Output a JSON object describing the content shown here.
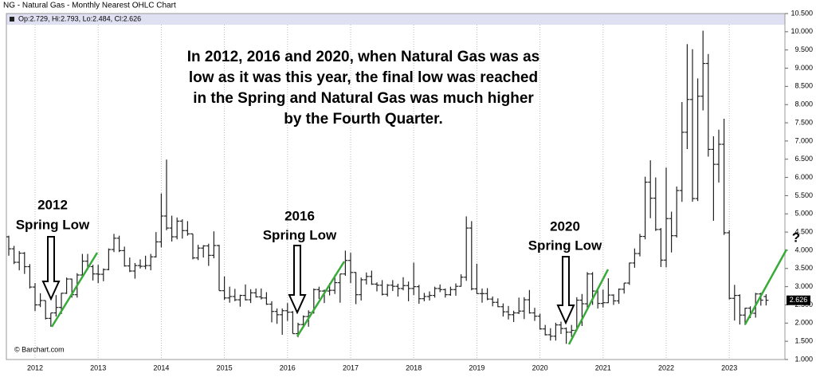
{
  "chart_data": {
    "type": "ohlc",
    "title": "NG - Natural Gas - Monthly Nearest OHLC Chart",
    "legend_labels": [
      "Op:",
      ", Hi:",
      ", Lo:",
      ", Cl:"
    ],
    "color": "#222222",
    "categories": [
      null,
      null,
      null,
      null,
      null,
      "2012",
      null,
      null,
      null,
      null,
      null,
      null,
      null,
      null,
      null,
      null,
      null,
      "2013",
      null,
      null,
      null,
      null,
      null,
      null,
      null,
      null,
      null,
      null,
      null,
      "2014",
      null,
      null,
      null,
      null,
      null,
      null,
      null,
      null,
      null,
      null,
      null,
      "2015",
      null,
      null,
      null,
      null,
      null,
      null,
      null,
      null,
      null,
      null,
      null,
      "2016",
      null,
      null,
      null,
      null,
      null,
      null,
      null,
      null,
      null,
      null,
      null,
      "2017",
      null,
      null,
      null,
      null,
      null,
      null,
      null,
      null,
      null,
      null,
      null,
      "2018",
      null,
      null,
      null,
      null,
      null,
      null,
      null,
      null,
      null,
      null,
      null,
      "2019",
      null,
      null,
      null,
      null,
      null,
      null,
      null,
      null,
      null,
      null,
      null,
      "2020",
      null,
      null,
      null,
      null,
      null,
      null,
      null,
      null,
      null,
      null,
      null,
      "2021",
      null,
      null,
      null,
      null,
      null,
      null,
      null,
      null,
      null,
      null,
      null,
      "2022",
      null,
      null,
      null,
      null,
      null,
      null,
      null,
      null,
      null,
      null,
      null,
      "2023",
      null,
      null,
      null,
      null,
      null,
      null,
      null
    ],
    "open": [
      4.37,
      4.04,
      3.67,
      3.92,
      3.55,
      2.99,
      2.5,
      2.62,
      2.13,
      2.28,
      2.43,
      2.82,
      3.21,
      2.78,
      3.32,
      3.7,
      3.55,
      3.35,
      3.34,
      3.47,
      4.02,
      4.33,
      3.99,
      3.57,
      3.43,
      3.58,
      3.56,
      3.58,
      3.82,
      4.23,
      4.94,
      4.61,
      4.37,
      4.8,
      4.54,
      4.45,
      3.79,
      4.06,
      4.12,
      3.86,
      4.13,
      2.89,
      2.69,
      2.73,
      2.64,
      2.76,
      2.64,
      2.83,
      2.72,
      2.69,
      2.52,
      2.32,
      2.23,
      2.34,
      2.3,
      1.71,
      1.96,
      2.18,
      2.29,
      2.92,
      2.88,
      2.88,
      2.9,
      3.11,
      3.35,
      3.72,
      3.39,
      2.78,
      3.19,
      3.28,
      3.07,
      3.04,
      2.79,
      3.04,
      3.01,
      2.95,
      3.03,
      2.95,
      3.0,
      2.67,
      2.73,
      2.76,
      2.95,
      2.92,
      2.78,
      2.92,
      3.01,
      3.26,
      4.61,
      2.94,
      2.81,
      2.81,
      2.66,
      2.57,
      2.45,
      2.31,
      2.23,
      2.28,
      2.33,
      2.64,
      2.28,
      2.19,
      1.84,
      1.68,
      1.64,
      1.95,
      1.85,
      1.75,
      1.8,
      2.63,
      2.53,
      3.35,
      2.88,
      2.54,
      2.56,
      2.77,
      2.61,
      2.93,
      3.1,
      3.65,
      3.91,
      4.38,
      5.87,
      5.43,
      4.57,
      3.73,
      4.87,
      4.4,
      5.64,
      7.24,
      8.14,
      5.42,
      8.23,
      9.13,
      6.77,
      6.36,
      6.91,
      4.48,
      2.68,
      2.76,
      2.22,
      2.41,
      2.27,
      2.8,
      2.729
    ],
    "high": [
      4.4,
      4.12,
      3.98,
      3.95,
      3.62,
      3.1,
      2.82,
      2.62,
      2.28,
      2.77,
      2.83,
      3.25,
      3.22,
      3.37,
      3.9,
      3.9,
      3.6,
      3.6,
      3.5,
      4.05,
      4.45,
      4.4,
      4.1,
      3.8,
      3.65,
      3.75,
      3.85,
      3.9,
      4.5,
      5.56,
      6.49,
      4.95,
      4.9,
      4.85,
      4.8,
      4.45,
      4.15,
      4.14,
      4.18,
      4.52,
      4.15,
      3.28,
      3.0,
      2.94,
      2.78,
      3.06,
      2.93,
      2.95,
      2.95,
      2.85,
      2.6,
      2.4,
      2.4,
      2.55,
      2.33,
      2.01,
      2.21,
      2.35,
      2.95,
      3.0,
      2.92,
      3.1,
      3.33,
      3.35,
      3.99,
      3.93,
      3.4,
      3.25,
      3.39,
      3.44,
      3.12,
      3.18,
      3.07,
      3.18,
      3.08,
      3.26,
      3.14,
      3.66,
      3.05,
      2.83,
      2.87,
      3.0,
      3.06,
      2.95,
      3.0,
      3.09,
      3.34,
      4.93,
      4.8,
      3.63,
      2.95,
      2.96,
      2.73,
      2.68,
      2.54,
      2.47,
      2.34,
      2.7,
      2.71,
      2.91,
      2.42,
      2.26,
      1.95,
      1.86,
      2.01,
      2.04,
      1.88,
      1.95,
      2.71,
      2.8,
      3.4,
      3.4,
      2.96,
      2.92,
      3.23,
      2.79,
      2.95,
      3.1,
      3.66,
      4.05,
      4.45,
      6.02,
      6.47,
      6.0,
      4.61,
      6.27,
      5.06,
      5.75,
      8.07,
      9.66,
      9.52,
      8.72,
      10.03,
      9.39,
      7.13,
      7.31,
      7.61,
      4.55,
      3.05,
      2.79,
      2.42,
      2.46,
      2.83,
      2.83,
      2.793
    ],
    "low": [
      3.85,
      3.62,
      3.45,
      3.35,
      2.95,
      2.33,
      2.44,
      2.1,
      1.9,
      2.18,
      2.25,
      2.8,
      2.7,
      2.7,
      3.25,
      3.46,
      3.17,
      3.1,
      3.15,
      3.45,
      3.95,
      3.95,
      3.55,
      3.4,
      3.22,
      3.5,
      3.48,
      3.45,
      3.8,
      4.08,
      4.55,
      4.24,
      4.3,
      4.32,
      4.4,
      3.75,
      3.73,
      3.8,
      3.57,
      3.78,
      2.89,
      2.64,
      2.56,
      2.6,
      2.45,
      2.62,
      2.55,
      2.7,
      2.65,
      2.5,
      2.02,
      1.98,
      1.68,
      2.06,
      1.71,
      1.61,
      1.9,
      1.9,
      2.26,
      2.66,
      2.55,
      2.76,
      2.8,
      2.56,
      3.3,
      3.1,
      2.52,
      2.62,
      3.06,
      3.05,
      2.87,
      2.76,
      2.73,
      2.88,
      2.73,
      2.9,
      2.6,
      2.77,
      2.53,
      2.6,
      2.62,
      2.7,
      2.85,
      2.7,
      2.75,
      2.75,
      3.0,
      3.16,
      2.9,
      2.8,
      2.56,
      2.63,
      2.46,
      2.44,
      2.18,
      2.1,
      2.03,
      2.25,
      2.11,
      2.26,
      2.06,
      1.82,
      1.66,
      1.52,
      1.52,
      1.7,
      1.43,
      1.62,
      1.78,
      1.92,
      2.39,
      2.5,
      2.4,
      2.43,
      2.55,
      2.5,
      2.53,
      2.81,
      3.05,
      3.52,
      3.83,
      4.3,
      4.88,
      4.53,
      3.54,
      3.53,
      3.94,
      4.35,
      5.33,
      6.78,
      5.33,
      5.35,
      7.84,
      6.57,
      4.81,
      5.86,
      4.42,
      2.65,
      2.07,
      1.96,
      1.95,
      2.14,
      2.15,
      2.48,
      2.484
    ],
    "close": [
      4.04,
      3.67,
      3.92,
      3.55,
      2.99,
      2.5,
      2.62,
      2.13,
      2.28,
      2.43,
      2.82,
      3.21,
      2.78,
      3.32,
      3.7,
      3.55,
      3.35,
      3.34,
      3.47,
      4.02,
      4.33,
      3.99,
      3.57,
      3.43,
      3.58,
      3.56,
      3.58,
      3.82,
      4.23,
      4.94,
      4.61,
      4.37,
      4.8,
      4.54,
      4.45,
      3.79,
      4.06,
      4.12,
      3.86,
      4.13,
      2.89,
      2.69,
      2.73,
      2.64,
      2.76,
      2.64,
      2.83,
      2.72,
      2.69,
      2.52,
      2.32,
      2.23,
      2.34,
      2.3,
      1.71,
      1.96,
      2.18,
      2.29,
      2.92,
      2.88,
      2.88,
      2.9,
      3.11,
      3.35,
      3.72,
      3.39,
      2.78,
      3.19,
      3.28,
      3.07,
      3.04,
      2.79,
      3.04,
      3.01,
      2.95,
      3.03,
      2.95,
      3.0,
      2.67,
      2.73,
      2.76,
      2.95,
      2.92,
      2.78,
      2.92,
      3.01,
      3.26,
      4.61,
      2.94,
      2.81,
      2.81,
      2.66,
      2.57,
      2.45,
      2.31,
      2.23,
      2.28,
      2.33,
      2.64,
      2.28,
      2.19,
      1.84,
      1.68,
      1.64,
      1.95,
      1.85,
      1.75,
      1.8,
      2.63,
      2.53,
      3.35,
      2.88,
      2.54,
      2.56,
      2.77,
      2.61,
      2.93,
      3.1,
      3.65,
      3.91,
      4.38,
      5.87,
      5.43,
      4.57,
      3.73,
      4.87,
      4.4,
      5.64,
      7.24,
      8.14,
      5.42,
      8.23,
      9.13,
      6.77,
      6.36,
      6.91,
      4.48,
      2.68,
      2.76,
      2.22,
      2.41,
      2.27,
      2.8,
      2.63,
      2.626
    ],
    "ylim": [
      1.0,
      10.5
    ],
    "yticks": [
      {
        "value": 1.0,
        "label": "1.000"
      },
      {
        "value": 1.5,
        "label": "1.500"
      },
      {
        "value": 2.0,
        "label": "2.000"
      },
      {
        "value": 2.5,
        "label": "2.500"
      },
      {
        "value": 3.0,
        "label": "3.000"
      },
      {
        "value": 3.5,
        "label": "3.500"
      },
      {
        "value": 4.0,
        "label": "4.000"
      },
      {
        "value": 4.5,
        "label": "4.500"
      },
      {
        "value": 5.0,
        "label": "5.000"
      },
      {
        "value": 5.5,
        "label": "5.500"
      },
      {
        "value": 6.0,
        "label": "6.000"
      },
      {
        "value": 6.5,
        "label": "6.500"
      },
      {
        "value": 7.0,
        "label": "7.000"
      },
      {
        "value": 7.5,
        "label": "7.500"
      },
      {
        "value": 8.0,
        "label": "8.000"
      },
      {
        "value": 8.5,
        "label": "8.500"
      },
      {
        "value": 9.0,
        "label": "9.000"
      },
      {
        "value": 9.5,
        "label": "9.500"
      },
      {
        "value": 10.0,
        "label": "10.000"
      },
      {
        "value": 10.5,
        "label": "10.500"
      }
    ],
    "annotation_text": [
      "In 2012, 2016 and 2020, when Natural Gas was as",
      "low as it was this year, the final low was reached",
      "in the Spring and Natural Gas was much higher",
      "by the Fourth Quarter."
    ],
    "callouts": [
      {
        "year": "2012",
        "label": "Spring Low"
      },
      {
        "year": "2016",
        "label": "Spring Low"
      },
      {
        "year": "2020",
        "label": "Spring Low"
      }
    ],
    "question_mark": "?",
    "source": "© Barchart.com"
  }
}
